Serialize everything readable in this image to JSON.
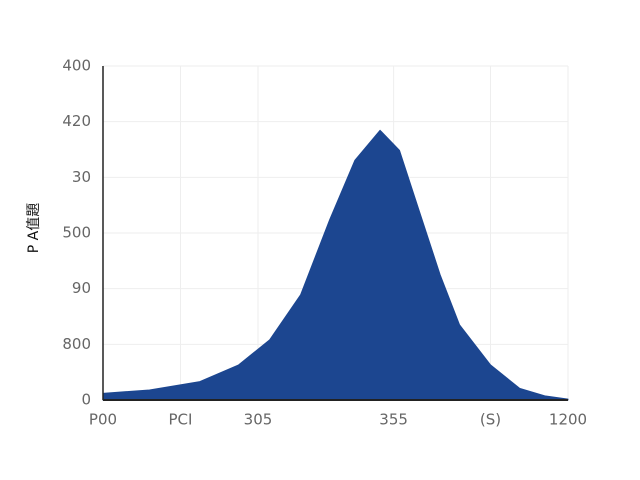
{
  "chart_data": {
    "type": "area",
    "ylabel": "P A值題",
    "color": "#1c4690",
    "x": [
      0,
      120,
      250,
      350,
      430,
      510,
      585,
      650,
      715,
      765,
      815,
      870,
      920,
      1000,
      1075,
      1140,
      1200
    ],
    "values": [
      8,
      12,
      22,
      42,
      72,
      126,
      216,
      287,
      323,
      299,
      228,
      150,
      90,
      42,
      14,
      5,
      1
    ],
    "xlim": [
      0,
      1200
    ],
    "xticks": [
      {
        "value": 0,
        "label": "P00"
      },
      {
        "value": 200,
        "label": "PCI"
      },
      {
        "value": 400,
        "label": "305"
      },
      {
        "value": 750,
        "label": "355"
      },
      {
        "value": 1000,
        "label": "(S)"
      },
      {
        "value": 1200,
        "label": "1200"
      }
    ],
    "ylim": [
      0,
      400
    ],
    "yticks": [
      0,
      {
        "value": 66.67,
        "label": "800"
      },
      {
        "value": 133.33,
        "label": "90"
      },
      {
        "value": 200,
        "label": "500"
      },
      {
        "value": 266.67,
        "label": "30"
      },
      {
        "value": 333.33,
        "label": "420"
      },
      400
    ],
    "grid": true
  }
}
